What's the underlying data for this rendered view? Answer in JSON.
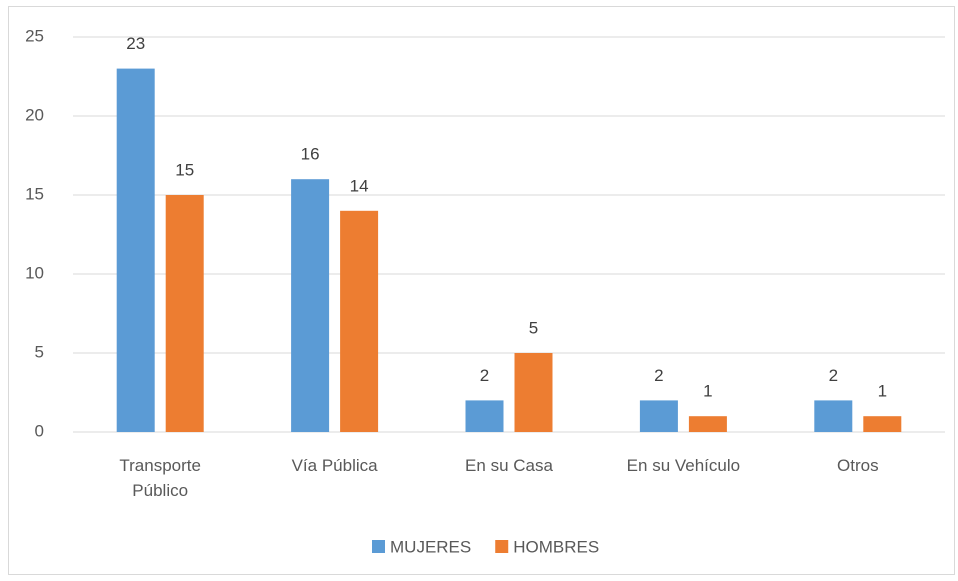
{
  "chart_data": {
    "type": "bar",
    "categories": [
      "Transporte Público",
      "Vía Pública",
      "En su Casa",
      "En su Vehículo",
      "Otros"
    ],
    "series": [
      {
        "name": "MUJERES",
        "color": "#5b9bd5",
        "values": [
          23,
          16,
          2,
          2,
          2
        ]
      },
      {
        "name": "HOMBRES",
        "color": "#ed7d31",
        "values": [
          15,
          14,
          5,
          1,
          1
        ]
      }
    ],
    "ylim": [
      0,
      25
    ],
    "yticks": [
      0,
      5,
      10,
      15,
      20,
      25
    ],
    "grid": true,
    "legend": "bottom"
  }
}
